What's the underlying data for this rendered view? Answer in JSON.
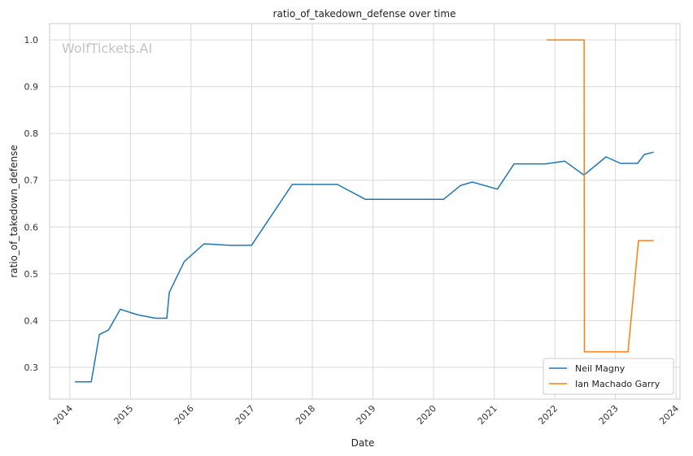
{
  "chart_data": {
    "type": "line",
    "title": "ratio_of_takedown_defense over time",
    "xlabel": "Date",
    "ylabel": "ratio_of_takedown_defense",
    "watermark": "WolfTickets.AI",
    "xlim": [
      "2013-09-01",
      "2024-01-25"
    ],
    "ylim": [
      0.232,
      1.035
    ],
    "xticks": [
      "2014",
      "2015",
      "2016",
      "2017",
      "2018",
      "2019",
      "2020",
      "2021",
      "2022",
      "2023",
      "2024"
    ],
    "yticks": [
      "0.3",
      "0.4",
      "0.5",
      "0.6",
      "0.7",
      "0.8",
      "0.9",
      "1.0"
    ],
    "grid": true,
    "legend_position": "lower-right",
    "series": [
      {
        "name": "Neil Magny",
        "color": "#1f77b4",
        "points": [
          [
            "2014-02-01",
            0.269
          ],
          [
            "2014-05-10",
            0.269
          ],
          [
            "2014-06-28",
            0.37
          ],
          [
            "2014-08-23",
            0.38
          ],
          [
            "2014-11-01",
            0.424
          ],
          [
            "2015-02-15",
            0.412
          ],
          [
            "2015-06-01",
            0.405
          ],
          [
            "2015-08-08",
            0.405
          ],
          [
            "2015-08-23",
            0.46
          ],
          [
            "2015-11-21",
            0.526
          ],
          [
            "2016-03-19",
            0.564
          ],
          [
            "2016-08-20",
            0.561
          ],
          [
            "2016-12-31",
            0.561
          ],
          [
            "2017-09-02",
            0.691
          ],
          [
            "2018-06-01",
            0.691
          ],
          [
            "2018-11-17",
            0.659
          ],
          [
            "2019-05-01",
            0.659
          ],
          [
            "2020-03-01",
            0.659
          ],
          [
            "2020-06-13",
            0.689
          ],
          [
            "2020-08-22",
            0.696
          ],
          [
            "2021-01-20",
            0.681
          ],
          [
            "2021-05-01",
            0.735
          ],
          [
            "2021-11-06",
            0.735
          ],
          [
            "2022-03-01",
            0.741
          ],
          [
            "2022-06-25",
            0.711
          ],
          [
            "2022-11-05",
            0.75
          ],
          [
            "2023-02-01",
            0.736
          ],
          [
            "2023-05-15",
            0.736
          ],
          [
            "2023-06-24",
            0.755
          ],
          [
            "2023-08-19",
            0.76
          ]
        ]
      },
      {
        "name": "Ian Machado Garry",
        "color": "#ff7f0e",
        "points": [
          [
            "2021-11-13",
            1.0
          ],
          [
            "2022-06-26",
            1.0
          ],
          [
            "2022-06-28",
            0.333
          ],
          [
            "2023-03-18",
            0.333
          ],
          [
            "2023-05-20",
            0.571
          ],
          [
            "2023-08-19",
            0.571
          ]
        ]
      }
    ]
  }
}
